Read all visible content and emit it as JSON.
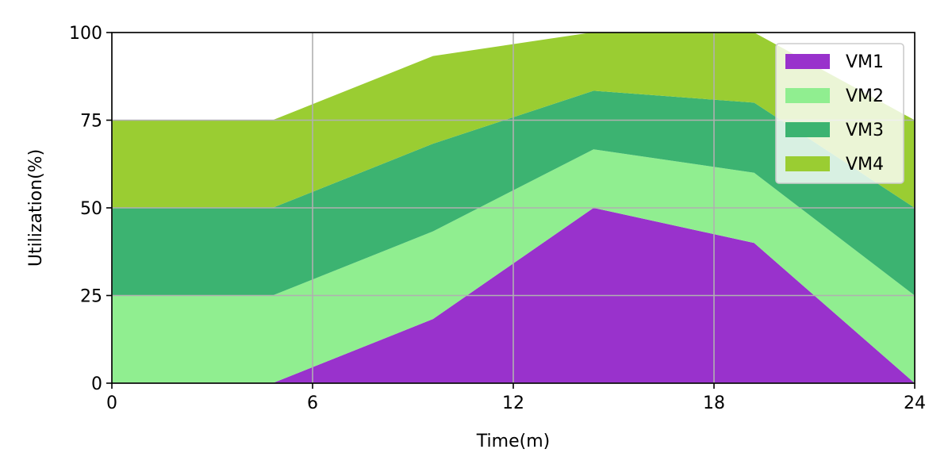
{
  "chart_data": {
    "type": "area",
    "stacked": true,
    "title": "",
    "xlabel": "Time(m)",
    "ylabel": "Utilization(%)",
    "xlim": [
      0,
      24
    ],
    "ylim": [
      0,
      100
    ],
    "xticks": [
      "0",
      "6",
      "12",
      "18",
      "24"
    ],
    "yticks": [
      "0",
      "25",
      "50",
      "75",
      "100"
    ],
    "grid": true,
    "legend_position": "top-right",
    "x": [
      0,
      4.8,
      9.6,
      14.4,
      19.2,
      24
    ],
    "series": [
      {
        "name": "VM1",
        "color": "#9932CC",
        "values": [
          0,
          0,
          18.3,
          50,
          40,
          0
        ]
      },
      {
        "name": "VM2",
        "color": "#90EE90",
        "values": [
          25,
          25,
          25,
          16.7,
          20,
          25
        ]
      },
      {
        "name": "VM3",
        "color": "#3CB371",
        "values": [
          25,
          25,
          25,
          16.7,
          20,
          25
        ]
      },
      {
        "name": "VM4",
        "color": "#9ACD32",
        "values": [
          25,
          25,
          25,
          16.7,
          20,
          25
        ]
      }
    ]
  }
}
